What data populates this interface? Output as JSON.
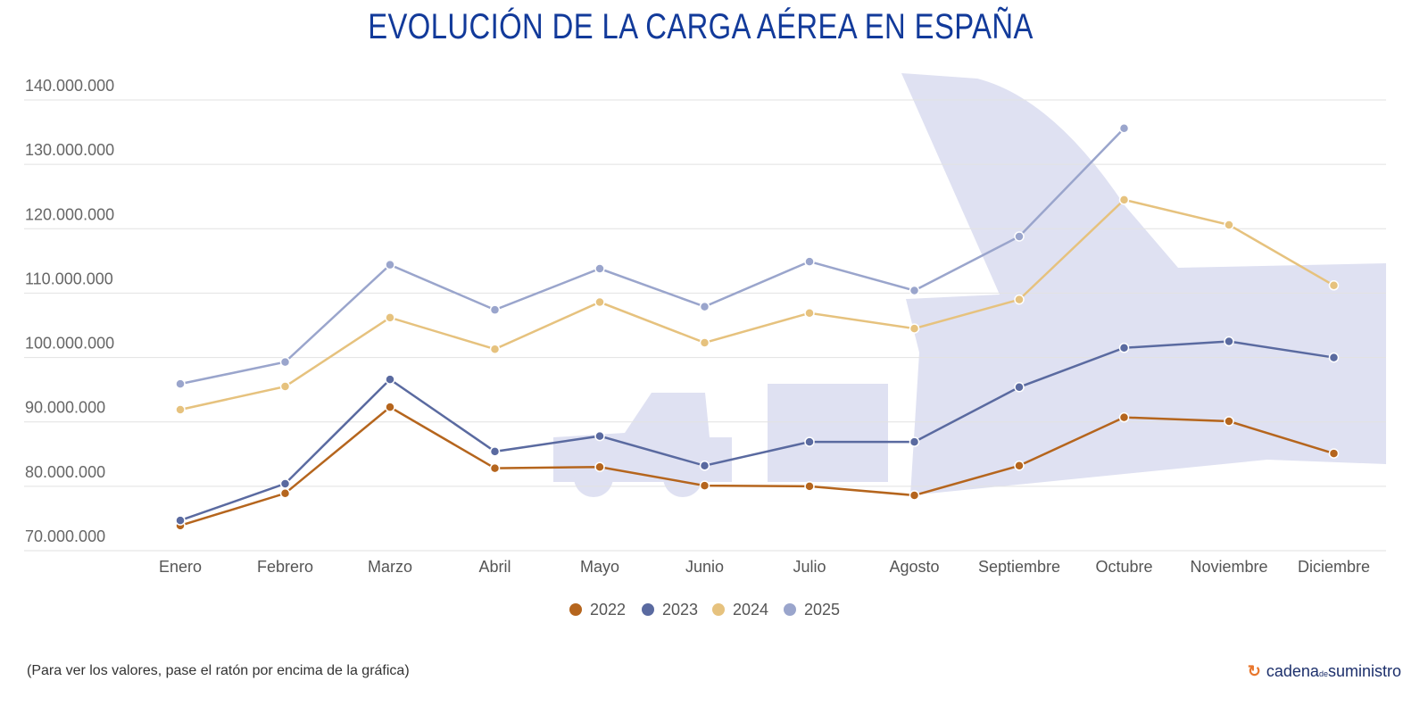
{
  "title": "EVOLUCIÓN DE LA CARGA AÉREA EN ESPAÑA",
  "note": "(Para ver los valores, pase el ratón por encima de la gráfica)",
  "logo": {
    "name": "cadena de suministro",
    "part1": "cadena",
    "part2": "de",
    "part3": "suministro"
  },
  "chart_data": {
    "type": "line",
    "title": "EVOLUCIÓN DE LA CARGA AÉREA EN ESPAÑA",
    "xlabel": "",
    "ylabel": "",
    "categories": [
      "Enero",
      "Febrero",
      "Marzo",
      "Abril",
      "Mayo",
      "Junio",
      "Julio",
      "Agosto",
      "Septiembre",
      "Octubre",
      "Noviembre",
      "Diciembre"
    ],
    "ylim": [
      70000000,
      140000000
    ],
    "yticks": [
      70000000,
      80000000,
      90000000,
      100000000,
      110000000,
      120000000,
      130000000,
      140000000
    ],
    "ytick_labels": [
      "70.000.000",
      "80.000.000",
      "90.000.000",
      "100.000.000",
      "110.000.000",
      "120.000.000",
      "130.000.000",
      "140.000.000"
    ],
    "grid": true,
    "legend_position": "bottom",
    "series": [
      {
        "name": "2022",
        "color": "#b5651d",
        "values": [
          73900000,
          78900000,
          92300000,
          82800000,
          83000000,
          80100000,
          80000000,
          78600000,
          83200000,
          90700000,
          90100000,
          85100000
        ]
      },
      {
        "name": "2023",
        "color": "#5a6aa0",
        "values": [
          74700000,
          80400000,
          96600000,
          85400000,
          87800000,
          83200000,
          86900000,
          86900000,
          95400000,
          101500000,
          102500000,
          100000000
        ]
      },
      {
        "name": "2024",
        "color": "#e6c27e",
        "values": [
          91900000,
          95500000,
          106200000,
          101300000,
          108600000,
          102300000,
          106900000,
          104500000,
          109000000,
          124500000,
          120600000,
          111200000
        ]
      },
      {
        "name": "2025",
        "color": "#9aa5cc",
        "values": [
          95900000,
          99300000,
          114400000,
          107400000,
          113800000,
          107900000,
          114900000,
          110400000,
          118800000,
          135600000,
          null,
          null
        ]
      }
    ]
  }
}
